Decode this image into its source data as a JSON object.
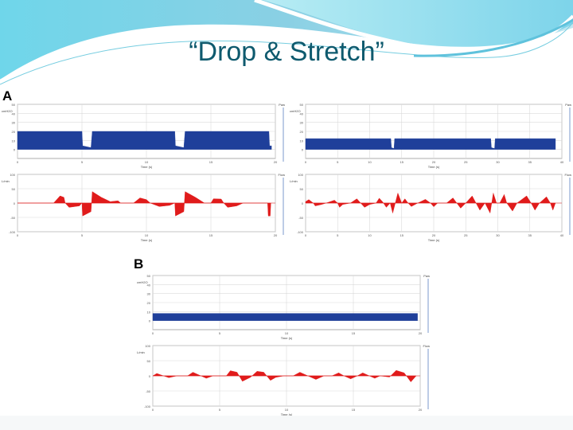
{
  "slide": {
    "title": "“Drop & Stretch”",
    "panels": [
      {
        "label": "A"
      },
      {
        "label": "B"
      }
    ]
  },
  "colors": {
    "title": "#0e5a6e",
    "pressure_fill": "#1f3f9a",
    "flow_fill": "#e01b1b",
    "grid": "#d9d9d9",
    "wave_light": "#9fe3ef",
    "wave_dark": "#58c3dc"
  },
  "chart_data": [
    {
      "id": "A-left-pressure",
      "panel": "A",
      "type": "area",
      "ylabel": "cmH2O",
      "xlabel": "Time (s)",
      "legend": "Paw",
      "ylim": [
        -10,
        50
      ],
      "yticks": [
        0,
        10,
        20,
        30,
        40,
        50
      ],
      "xlim": [
        0,
        20
      ],
      "xticks": [
        0,
        5,
        10,
        15,
        20
      ],
      "grid": true,
      "x": [
        0,
        5.0,
        5.05,
        5.7,
        5.8,
        12.2,
        12.25,
        12.9,
        13.0,
        19.5,
        19.55,
        19.7
      ],
      "values": [
        20,
        20,
        4,
        2,
        20,
        20,
        4,
        2,
        20,
        20,
        4,
        4
      ]
    },
    {
      "id": "A-left-flow",
      "panel": "A",
      "type": "area",
      "ylabel": "L/min",
      "xlabel": "Time (s)",
      "legend": "Flow",
      "ylim": [
        -100,
        100
      ],
      "yticks": [
        -100,
        -50,
        0,
        50,
        100
      ],
      "xlim": [
        0,
        20
      ],
      "xticks": [
        0,
        5,
        10,
        15,
        20
      ],
      "grid": true,
      "x": [
        0,
        2.8,
        3.3,
        3.6,
        3.7,
        4.0,
        4.8,
        5.0,
        5.05,
        5.7,
        5.8,
        6.5,
        7.2,
        7.8,
        8.0,
        9.0,
        9.5,
        10.0,
        10.3,
        11.0,
        11.8,
        12.2,
        12.25,
        12.9,
        13.0,
        13.8,
        14.5,
        15.0,
        15.2,
        15.8,
        16.0,
        16.3,
        17.0,
        17.5,
        19.4,
        19.45,
        19.6,
        19.65
      ],
      "values": [
        0,
        0,
        25,
        20,
        0,
        -15,
        -10,
        0,
        -45,
        -30,
        40,
        20,
        5,
        8,
        0,
        0,
        18,
        12,
        0,
        -12,
        -8,
        0,
        -45,
        -30,
        40,
        20,
        0,
        0,
        15,
        14,
        0,
        -15,
        -10,
        0,
        0,
        -45,
        -45,
        0
      ]
    },
    {
      "id": "A-right-pressure",
      "panel": "A",
      "type": "area",
      "ylabel": "cmH2O",
      "xlabel": "Time (s)",
      "legend": "Paw",
      "ylim": [
        -10,
        50
      ],
      "yticks": [
        0,
        10,
        20,
        30,
        40,
        50
      ],
      "xlim": [
        0,
        40
      ],
      "xticks": [
        0,
        5,
        10,
        15,
        20,
        25,
        30,
        35,
        40
      ],
      "grid": true,
      "x": [
        0,
        13.3,
        13.4,
        13.8,
        13.9,
        28.9,
        29.0,
        29.5,
        29.6,
        39.0
      ],
      "values": [
        12,
        12,
        2,
        1,
        12,
        12,
        2,
        1,
        12,
        12
      ]
    },
    {
      "id": "A-right-flow",
      "panel": "A",
      "type": "area",
      "ylabel": "L/min",
      "xlabel": "Time (s)",
      "legend": "Flow",
      "ylim": [
        -100,
        100
      ],
      "yticks": [
        -100,
        -50,
        0,
        50,
        100
      ],
      "xlim": [
        0,
        40
      ],
      "xticks": [
        0,
        5,
        10,
        15,
        20,
        25,
        30,
        35,
        40
      ],
      "grid": true,
      "x": [
        0,
        0.5,
        1.2,
        1.5,
        2.5,
        3.2,
        4.5,
        5.0,
        5.3,
        5.8,
        7.0,
        8.0,
        8.6,
        9.2,
        10.0,
        11.0,
        11.5,
        12.0,
        12.6,
        13.2,
        13.6,
        14.0,
        14.4,
        15.0,
        15.5,
        16.0,
        16.5,
        17.5,
        18.7,
        19.5,
        20.0,
        20.6,
        22.0,
        23.0,
        23.6,
        24.2,
        25.0,
        26.0,
        26.6,
        27.2,
        28.0,
        28.8,
        29.3,
        29.8,
        30.3,
        31.0,
        31.4,
        32.3,
        33.0,
        34.5,
        35.2,
        35.8,
        36.5,
        37.6,
        38.2,
        38.6,
        39.0
      ],
      "values": [
        5,
        12,
        0,
        -10,
        -5,
        0,
        10,
        0,
        -15,
        -5,
        0,
        15,
        0,
        -15,
        -5,
        0,
        17,
        5,
        -15,
        0,
        -35,
        0,
        35,
        0,
        15,
        0,
        -12,
        0,
        13,
        0,
        -13,
        0,
        0,
        18,
        0,
        -18,
        0,
        25,
        0,
        -25,
        0,
        -35,
        35,
        0,
        0,
        30,
        0,
        -28,
        0,
        25,
        0,
        -25,
        0,
        22,
        0,
        -25,
        0
      ]
    },
    {
      "id": "B-pressure",
      "panel": "B",
      "type": "area",
      "ylabel": "cmH2O",
      "xlabel": "Time (s)",
      "legend": "Paw",
      "ylim": [
        -10,
        50
      ],
      "yticks": [
        0,
        10,
        20,
        30,
        40,
        50
      ],
      "xlim": [
        0,
        20
      ],
      "xticks": [
        0,
        5,
        10,
        15,
        20
      ],
      "grid": true,
      "x": [
        0,
        19.8
      ],
      "values": [
        8,
        8
      ]
    },
    {
      "id": "B-flow",
      "panel": "B",
      "type": "area",
      "ylabel": "L/min",
      "xlabel": "Time (s)",
      "legend": "Flow",
      "ylim": [
        -100,
        100
      ],
      "yticks": [
        -100,
        -50,
        0,
        50,
        100
      ],
      "xlim": [
        0,
        20
      ],
      "xticks": [
        0,
        5,
        10,
        15,
        20
      ],
      "grid": true,
      "x": [
        0,
        0.3,
        0.8,
        1.2,
        1.8,
        2.6,
        3.0,
        3.6,
        4.0,
        4.5,
        5.0,
        5.5,
        5.8,
        6.3,
        6.7,
        7.3,
        7.8,
        8.3,
        8.8,
        9.2,
        9.8,
        10.5,
        11.0,
        11.6,
        12.2,
        12.8,
        13.4,
        13.9,
        14.3,
        14.8,
        15.3,
        15.7,
        16.2,
        16.6,
        17.0,
        17.7,
        18.2,
        18.8,
        19.3,
        19.7
      ],
      "values": [
        0,
        8,
        0,
        -6,
        0,
        0,
        12,
        0,
        -8,
        0,
        0,
        0,
        17,
        12,
        -18,
        -5,
        15,
        12,
        -15,
        -5,
        0,
        0,
        12,
        0,
        -12,
        0,
        0,
        10,
        0,
        -10,
        0,
        10,
        0,
        -8,
        0,
        -4,
        18,
        10,
        -20,
        0
      ]
    }
  ]
}
